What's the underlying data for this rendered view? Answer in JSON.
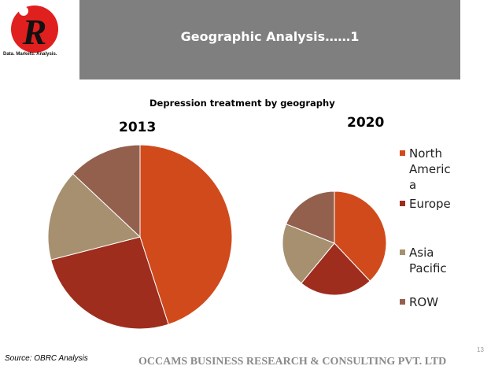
{
  "header": {
    "title": "Geographic Analysis……1"
  },
  "logo": {
    "letter": "R",
    "caption": "Data. Markets. Analysis."
  },
  "chart_data": {
    "type": "pie",
    "title": "Depression treatment by geography",
    "categories": [
      "North America",
      "Europe",
      "Asia Pacific",
      "ROW"
    ],
    "legend_position": "right",
    "colors": [
      "#D14A1C",
      "#9E2D1E",
      "#A69070",
      "#94604E"
    ],
    "series": [
      {
        "name": "2013",
        "values": [
          45,
          26,
          16,
          13
        ]
      },
      {
        "name": "2020",
        "values": [
          38,
          23,
          20,
          19
        ]
      }
    ]
  },
  "legend": {
    "items": [
      {
        "label": "North America",
        "display": "North\nAmeric\na",
        "color": "#D14A1C"
      },
      {
        "label": "Europe",
        "display": "Europe",
        "color": "#9E2D1E"
      },
      {
        "label": "Asia Pacific",
        "display": "Asia\nPacific",
        "color": "#A69070"
      },
      {
        "label": "ROW",
        "display": "ROW",
        "color": "#94604E"
      }
    ]
  },
  "footer": {
    "source": "Source: OBRC Analysis",
    "company": "OCCAMS BUSINESS RESEARCH & CONSULTING PVT. LTD",
    "page_number": "13"
  }
}
